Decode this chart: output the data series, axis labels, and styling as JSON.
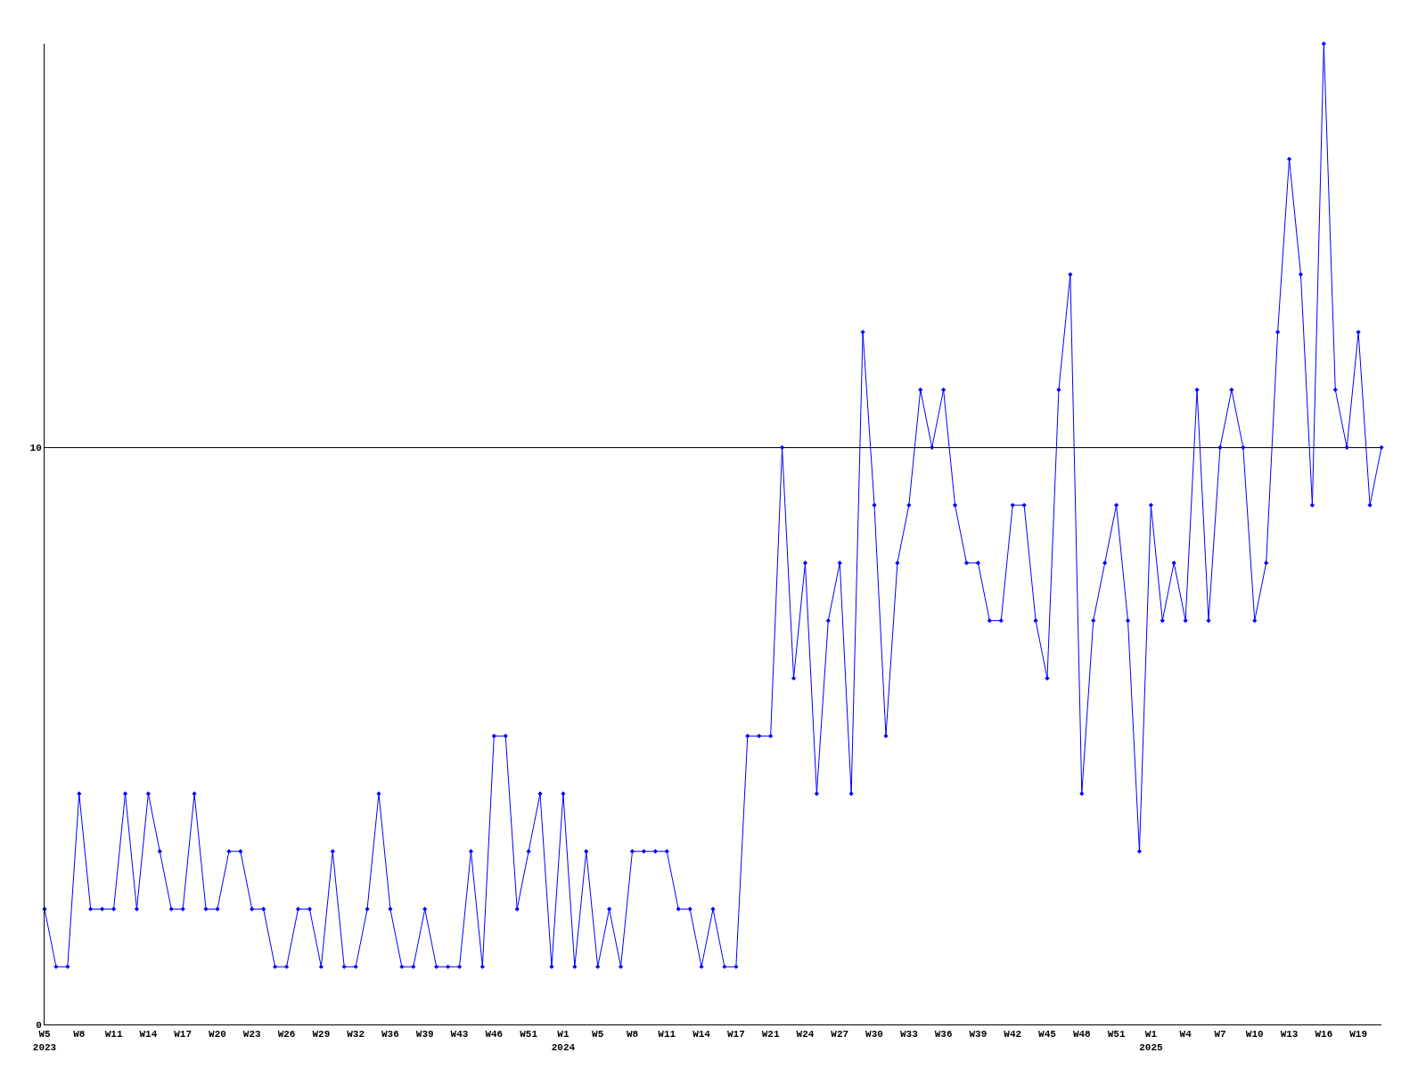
{
  "chart_data": {
    "type": "line",
    "categories": [
      "W5\n2023",
      null,
      null,
      "W8",
      null,
      null,
      "W11",
      null,
      null,
      "W14",
      null,
      null,
      "W17",
      null,
      null,
      "W20",
      null,
      null,
      "W23",
      null,
      null,
      "W26",
      null,
      null,
      "W29",
      null,
      null,
      "W32",
      null,
      null,
      "W36",
      null,
      null,
      "W39",
      null,
      null,
      "W43",
      null,
      null,
      "W46",
      null,
      null,
      "W51",
      null,
      null,
      "W1\n2024",
      null,
      null,
      "W5",
      null,
      null,
      "W8",
      null,
      null,
      "W11",
      null,
      null,
      "W14",
      null,
      null,
      "W17",
      null,
      null,
      "W21",
      null,
      null,
      "W24",
      null,
      null,
      "W27",
      null,
      null,
      "W30",
      null,
      null,
      "W33",
      null,
      null,
      "W36",
      null,
      null,
      "W39",
      null,
      null,
      "W42",
      null,
      null,
      "W45",
      null,
      null,
      "W48",
      null,
      null,
      "W51",
      null,
      null,
      "W1\n2025",
      null,
      null,
      "W4",
      null,
      null,
      "W7",
      null,
      null,
      "W10",
      null,
      null,
      "W13",
      null,
      null,
      "W16",
      null,
      null,
      "W19",
      null,
      null
    ],
    "series": [
      {
        "color": "#0000ff",
        "values": [
          2,
          1,
          1,
          4,
          2,
          2,
          2,
          4,
          2,
          4,
          3,
          2,
          2,
          4,
          2,
          2,
          3,
          3,
          2,
          2,
          1,
          1,
          2,
          2,
          1,
          3,
          1,
          1,
          2,
          4,
          2,
          1,
          1,
          2,
          1,
          1,
          1,
          3,
          1,
          5,
          5,
          2,
          3,
          4,
          1,
          4,
          1,
          3,
          1,
          2,
          1,
          3,
          3,
          3,
          3,
          2,
          2,
          1,
          2,
          1,
          1,
          5,
          5,
          5,
          10,
          6,
          8,
          4,
          7,
          8,
          4,
          12,
          9,
          5,
          8,
          9,
          11,
          10,
          11,
          9,
          8,
          8,
          7,
          7,
          9,
          9,
          7,
          6,
          11,
          13,
          4,
          7,
          8,
          9,
          7,
          3,
          9,
          7,
          8,
          7,
          11,
          7,
          10,
          11,
          10,
          7,
          8,
          12,
          15,
          13,
          9,
          17,
          11,
          10,
          12,
          9,
          10
        ]
      }
    ],
    "ylim": [
      0,
      17
    ],
    "yticks": [
      0,
      10
    ],
    "grid": "y",
    "marker": "diamond",
    "line_style": "solid",
    "legend": false
  }
}
